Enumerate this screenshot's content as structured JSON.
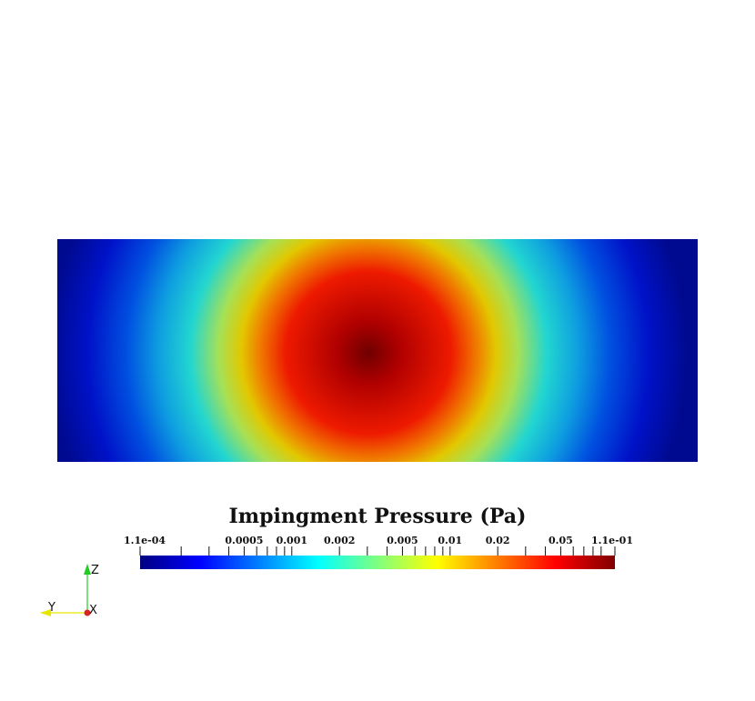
{
  "scalar_bar": {
    "title": "Impingment Pressure (Pa)",
    "scale": "log",
    "range": [
      0.00011,
      0.11
    ],
    "colormap": [
      "#00007f",
      "#0000ff",
      "#007fff",
      "#00ffff",
      "#7fff7f",
      "#ffff00",
      "#ff7f00",
      "#ff0000",
      "#7f0000"
    ],
    "ticks": [
      {
        "value": 0.00011,
        "label": "1.1e-04"
      },
      {
        "value": 0.0002,
        "label": ""
      },
      {
        "value": 0.0003,
        "label": ""
      },
      {
        "value": 0.0004,
        "label": ""
      },
      {
        "value": 0.0005,
        "label": "0.0005"
      },
      {
        "value": 0.0006,
        "label": ""
      },
      {
        "value": 0.0007,
        "label": ""
      },
      {
        "value": 0.0008,
        "label": ""
      },
      {
        "value": 0.0009,
        "label": ""
      },
      {
        "value": 0.001,
        "label": "0.001"
      },
      {
        "value": 0.002,
        "label": "0.002"
      },
      {
        "value": 0.003,
        "label": ""
      },
      {
        "value": 0.004,
        "label": ""
      },
      {
        "value": 0.005,
        "label": "0.005"
      },
      {
        "value": 0.006,
        "label": ""
      },
      {
        "value": 0.007,
        "label": ""
      },
      {
        "value": 0.008,
        "label": ""
      },
      {
        "value": 0.009,
        "label": ""
      },
      {
        "value": 0.01,
        "label": "0.01"
      },
      {
        "value": 0.02,
        "label": "0.02"
      },
      {
        "value": 0.03,
        "label": ""
      },
      {
        "value": 0.04,
        "label": ""
      },
      {
        "value": 0.05,
        "label": "0.05"
      },
      {
        "value": 0.06,
        "label": ""
      },
      {
        "value": 0.07,
        "label": ""
      },
      {
        "value": 0.08,
        "label": ""
      },
      {
        "value": 0.09,
        "label": ""
      },
      {
        "value": 0.11,
        "label": "1.1e-01"
      }
    ]
  },
  "field": {
    "colors": {
      "peak": "#7f0000",
      "edge": "#00007f"
    }
  },
  "orientation_axes": {
    "z_label": "Z",
    "y_label": "Y",
    "x_label": "X",
    "colors": {
      "z": "#22cc22",
      "y": "#e6e600",
      "x": "#dd2222"
    }
  }
}
